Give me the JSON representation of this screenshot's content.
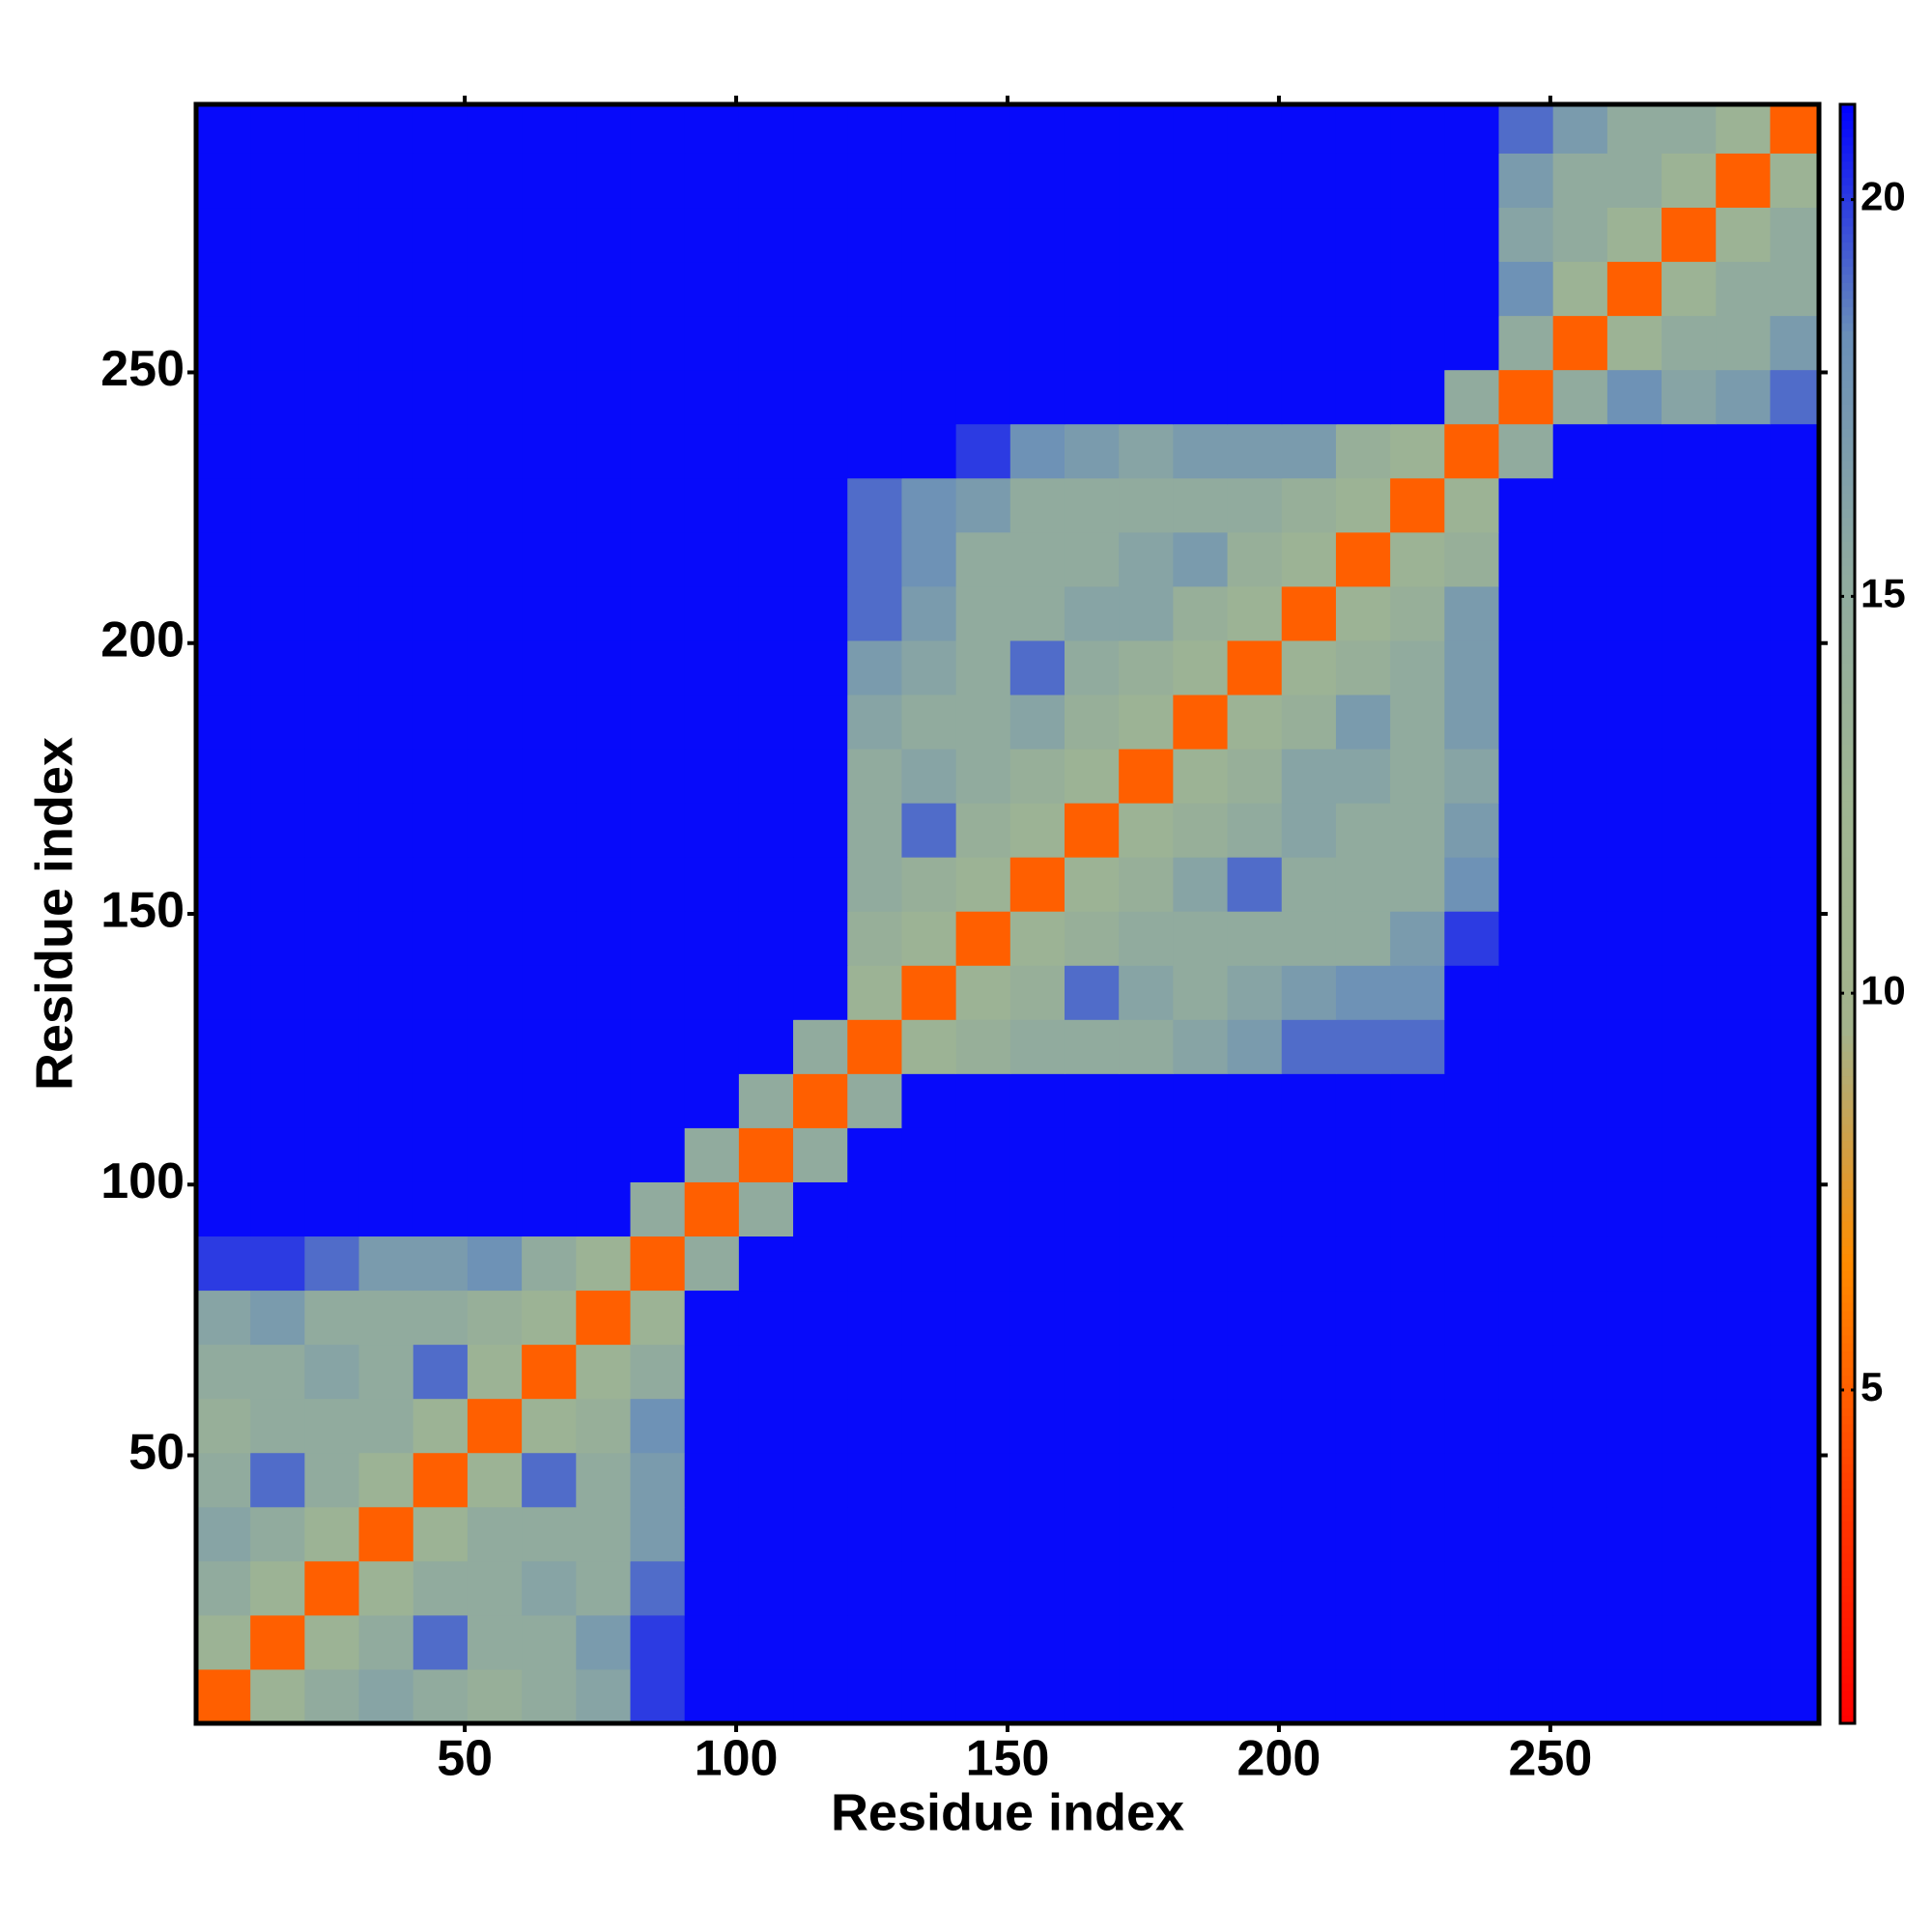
{
  "chart_data": {
    "type": "heatmap",
    "xlabel": "Residue index",
    "ylabel": "Residue index",
    "x": [
      5.5,
      15.5,
      25.5,
      35.5,
      45.5,
      55.5,
      65.5,
      75.5,
      85.5,
      95.5,
      105.5,
      115.5,
      125.5,
      135.5,
      145.5,
      155.5,
      165.5,
      175.5,
      185.5,
      195.5,
      205.5,
      215.5,
      225.5,
      235.5,
      245.5,
      255.5,
      265.5,
      275.5,
      285.5,
      295.5
    ],
    "y": [
      5.5,
      15.5,
      25.5,
      35.5,
      45.5,
      55.5,
      65.5,
      75.5,
      85.5,
      95.5,
      105.5,
      115.5,
      125.5,
      135.5,
      145.5,
      155.5,
      165.5,
      175.5,
      185.5,
      195.5,
      205.5,
      215.5,
      225.5,
      235.5,
      245.5,
      255.5,
      265.5,
      275.5,
      285.5,
      295.5
    ],
    "z": [
      [
        5,
        13,
        15,
        16,
        15,
        14,
        15,
        16,
        20,
        21,
        21,
        21,
        21,
        21,
        21,
        21,
        21,
        21,
        21,
        21,
        21,
        21,
        21,
        21,
        21,
        21,
        21,
        21,
        21,
        21
      ],
      [
        13,
        5,
        13,
        15,
        19,
        15,
        15,
        17,
        20,
        21,
        21,
        21,
        21,
        21,
        21,
        21,
        21,
        21,
        21,
        21,
        21,
        21,
        21,
        21,
        21,
        21,
        21,
        21,
        21,
        21
      ],
      [
        15,
        13,
        5,
        13,
        15,
        15,
        16,
        15,
        19,
        21,
        21,
        21,
        21,
        21,
        21,
        21,
        21,
        21,
        21,
        21,
        21,
        21,
        21,
        21,
        21,
        21,
        21,
        21,
        21,
        21
      ],
      [
        16,
        15,
        13,
        5,
        13,
        15,
        15,
        15,
        17,
        21,
        21,
        21,
        21,
        21,
        21,
        21,
        21,
        21,
        21,
        21,
        21,
        21,
        21,
        21,
        21,
        21,
        21,
        21,
        21,
        21
      ],
      [
        15,
        19,
        15,
        13,
        5,
        13,
        19,
        15,
        17,
        21,
        21,
        21,
        21,
        21,
        21,
        21,
        21,
        21,
        21,
        21,
        21,
        21,
        21,
        21,
        21,
        21,
        21,
        21,
        21,
        21
      ],
      [
        14,
        15,
        15,
        15,
        13,
        5,
        13,
        14,
        18,
        21,
        21,
        21,
        21,
        21,
        21,
        21,
        21,
        21,
        21,
        21,
        21,
        21,
        21,
        21,
        21,
        21,
        21,
        21,
        21,
        21
      ],
      [
        15,
        15,
        16,
        15,
        19,
        13,
        5,
        13,
        15,
        21,
        21,
        21,
        21,
        21,
        21,
        21,
        21,
        21,
        21,
        21,
        21,
        21,
        21,
        21,
        21,
        21,
        21,
        21,
        21,
        21
      ],
      [
        16,
        17,
        15,
        15,
        15,
        14,
        13,
        5,
        13,
        21,
        21,
        21,
        21,
        21,
        21,
        21,
        21,
        21,
        21,
        21,
        21,
        21,
        21,
        21,
        21,
        21,
        21,
        21,
        21,
        21
      ],
      [
        20,
        20,
        19,
        17,
        17,
        18,
        15,
        13,
        5,
        15,
        21,
        21,
        21,
        21,
        21,
        21,
        21,
        21,
        21,
        21,
        21,
        21,
        21,
        21,
        21,
        21,
        21,
        21,
        21,
        21
      ],
      [
        21,
        21,
        21,
        21,
        21,
        21,
        21,
        21,
        15,
        5,
        15,
        21,
        21,
        21,
        21,
        21,
        21,
        21,
        21,
        21,
        21,
        21,
        21,
        21,
        21,
        21,
        21,
        21,
        21,
        21
      ],
      [
        21,
        21,
        21,
        21,
        21,
        21,
        21,
        21,
        21,
        15,
        5,
        15,
        21,
        21,
        21,
        21,
        21,
        21,
        21,
        21,
        21,
        21,
        21,
        21,
        21,
        21,
        21,
        21,
        21,
        21
      ],
      [
        21,
        21,
        21,
        21,
        21,
        21,
        21,
        21,
        21,
        21,
        15,
        5,
        15,
        21,
        21,
        21,
        21,
        21,
        21,
        21,
        21,
        21,
        21,
        21,
        21,
        21,
        21,
        21,
        21,
        21
      ],
      [
        21,
        21,
        21,
        21,
        21,
        21,
        21,
        21,
        21,
        21,
        21,
        15,
        5,
        13,
        14,
        15,
        15,
        15,
        16,
        17,
        19,
        19,
        19,
        21,
        21,
        21,
        21,
        21,
        21,
        21
      ],
      [
        21,
        21,
        21,
        21,
        21,
        21,
        21,
        21,
        21,
        21,
        21,
        21,
        13,
        5,
        13,
        14,
        19,
        16,
        15,
        16,
        17,
        18,
        18,
        21,
        21,
        21,
        21,
        21,
        21,
        21
      ],
      [
        21,
        21,
        21,
        21,
        21,
        21,
        21,
        21,
        21,
        21,
        21,
        21,
        14,
        13,
        5,
        13,
        14,
        15,
        15,
        15,
        15,
        15,
        17,
        20,
        21,
        21,
        21,
        21,
        21,
        21
      ],
      [
        21,
        21,
        21,
        21,
        21,
        21,
        21,
        21,
        21,
        21,
        21,
        21,
        15,
        14,
        13,
        5,
        13,
        14,
        16,
        19,
        15,
        15,
        15,
        18,
        21,
        21,
        21,
        21,
        21,
        21
      ],
      [
        21,
        21,
        21,
        21,
        21,
        21,
        21,
        21,
        21,
        21,
        21,
        21,
        15,
        19,
        14,
        13,
        5,
        13,
        14,
        15,
        16,
        15,
        15,
        17,
        21,
        21,
        21,
        21,
        21,
        21
      ],
      [
        21,
        21,
        21,
        21,
        21,
        21,
        21,
        21,
        21,
        21,
        21,
        21,
        15,
        16,
        15,
        14,
        13,
        5,
        13,
        14,
        16,
        16,
        15,
        16,
        21,
        21,
        21,
        21,
        21,
        21
      ],
      [
        21,
        21,
        21,
        21,
        21,
        21,
        21,
        21,
        21,
        21,
        21,
        21,
        16,
        15,
        15,
        16,
        14,
        13,
        5,
        13,
        14,
        17,
        15,
        17,
        21,
        21,
        21,
        21,
        21,
        21
      ],
      [
        21,
        21,
        21,
        21,
        21,
        21,
        21,
        21,
        21,
        21,
        21,
        21,
        17,
        16,
        15,
        19,
        15,
        14,
        13,
        5,
        13,
        14,
        15,
        17,
        21,
        21,
        21,
        21,
        21,
        21
      ],
      [
        21,
        21,
        21,
        21,
        21,
        21,
        21,
        21,
        21,
        21,
        21,
        21,
        19,
        17,
        15,
        15,
        16,
        16,
        14,
        13,
        5,
        13,
        14,
        17,
        21,
        21,
        21,
        21,
        21,
        21
      ],
      [
        21,
        21,
        21,
        21,
        21,
        21,
        21,
        21,
        21,
        21,
        21,
        21,
        19,
        18,
        15,
        15,
        15,
        16,
        17,
        14,
        13,
        5,
        13,
        14,
        21,
        21,
        21,
        21,
        21,
        21
      ],
      [
        21,
        21,
        21,
        21,
        21,
        21,
        21,
        21,
        21,
        21,
        21,
        21,
        19,
        18,
        17,
        15,
        15,
        15,
        15,
        15,
        14,
        13,
        5,
        13,
        21,
        21,
        21,
        21,
        21,
        21
      ],
      [
        21,
        21,
        21,
        21,
        21,
        21,
        21,
        21,
        21,
        21,
        21,
        21,
        21,
        21,
        20,
        18,
        17,
        16,
        17,
        17,
        17,
        14,
        13,
        5,
        15,
        21,
        21,
        21,
        21,
        21
      ],
      [
        21,
        21,
        21,
        21,
        21,
        21,
        21,
        21,
        21,
        21,
        21,
        21,
        21,
        21,
        21,
        21,
        21,
        21,
        21,
        21,
        21,
        21,
        21,
        15,
        5,
        15,
        18,
        16,
        17,
        19
      ],
      [
        21,
        21,
        21,
        21,
        21,
        21,
        21,
        21,
        21,
        21,
        21,
        21,
        21,
        21,
        21,
        21,
        21,
        21,
        21,
        21,
        21,
        21,
        21,
        21,
        15,
        5,
        13,
        15,
        15,
        17
      ],
      [
        21,
        21,
        21,
        21,
        21,
        21,
        21,
        21,
        21,
        21,
        21,
        21,
        21,
        21,
        21,
        21,
        21,
        21,
        21,
        21,
        21,
        21,
        21,
        21,
        18,
        13,
        5,
        13,
        15,
        15
      ],
      [
        21,
        21,
        21,
        21,
        21,
        21,
        21,
        21,
        21,
        21,
        21,
        21,
        21,
        21,
        21,
        21,
        21,
        21,
        21,
        21,
        21,
        21,
        21,
        21,
        16,
        15,
        13,
        5,
        13,
        15
      ],
      [
        21,
        21,
        21,
        21,
        21,
        21,
        21,
        21,
        21,
        21,
        21,
        21,
        21,
        21,
        21,
        21,
        21,
        21,
        21,
        21,
        21,
        21,
        21,
        21,
        17,
        15,
        15,
        13,
        5,
        13
      ],
      [
        21,
        21,
        21,
        21,
        21,
        21,
        21,
        21,
        21,
        21,
        21,
        21,
        21,
        21,
        21,
        21,
        21,
        21,
        21,
        21,
        21,
        21,
        21,
        21,
        19,
        17,
        15,
        15,
        13,
        5
      ]
    ],
    "xlim": [
      0.5,
      299.5
    ],
    "ylim": [
      0.5,
      299.5
    ],
    "xticks": [
      50,
      100,
      150,
      200,
      250
    ],
    "yticks": [
      50,
      100,
      150,
      200,
      250
    ],
    "zlim": [
      0.8,
      21.2
    ],
    "colorbar_ticks": [
      5,
      10,
      15,
      20
    ],
    "colorscale": [
      "#ff0000",
      "#ff3c00",
      "#ff8c00",
      "#a3b38c",
      "#9fb592",
      "#8faaa0",
      "#6a8fb8",
      "#0000ff"
    ]
  }
}
